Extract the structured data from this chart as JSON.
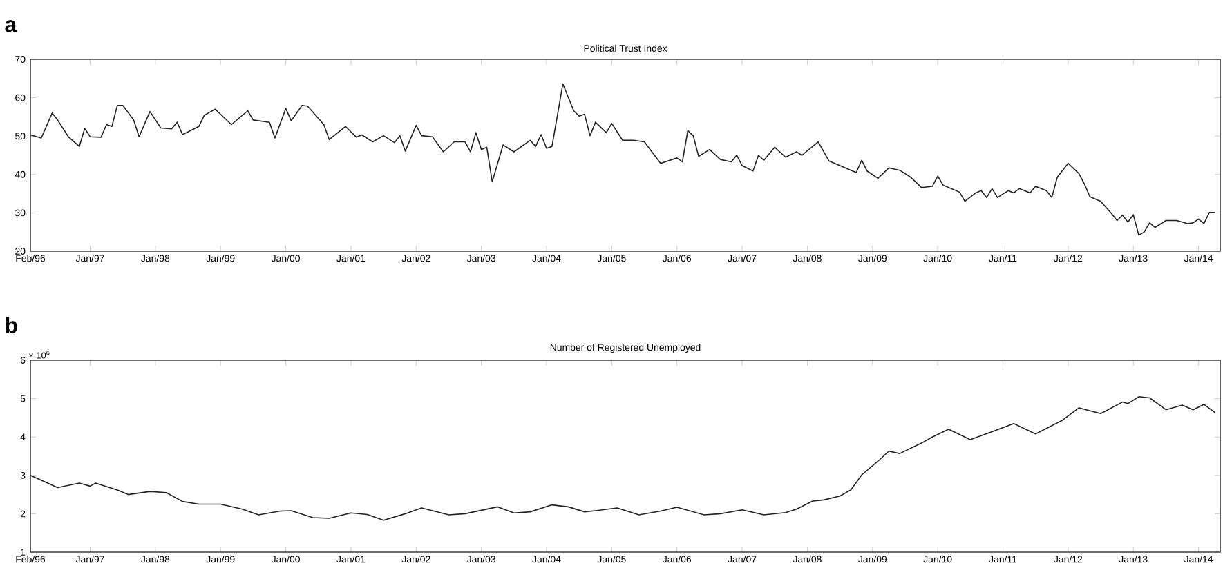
{
  "chart_data": [
    {
      "type": "line",
      "title": "Political Trust Index",
      "annotations": [
        "a"
      ],
      "xlim": [
        "1996-02",
        "2014-05"
      ],
      "ylim": [
        20,
        70
      ],
      "yticks": [
        20,
        30,
        40,
        50,
        60,
        70
      ],
      "xticks": [
        {
          "value": "1996-02",
          "label": "Feb/96"
        },
        {
          "value": "1997-01",
          "label": "Jan/97"
        },
        {
          "value": "1998-01",
          "label": "Jan/98"
        },
        {
          "value": "1999-01",
          "label": "Jan/99"
        },
        {
          "value": "2000-01",
          "label": "Jan/00"
        },
        {
          "value": "2001-01",
          "label": "Jan/01"
        },
        {
          "value": "2002-01",
          "label": "Jan/02"
        },
        {
          "value": "2003-01",
          "label": "Jan/03"
        },
        {
          "value": "2004-01",
          "label": "Jan/04"
        },
        {
          "value": "2005-01",
          "label": "Jan/05"
        },
        {
          "value": "2006-01",
          "label": "Jan/06"
        },
        {
          "value": "2007-01",
          "label": "Jan/07"
        },
        {
          "value": "2008-01",
          "label": "Jan/08"
        },
        {
          "value": "2009-01",
          "label": "Jan/09"
        },
        {
          "value": "2010-01",
          "label": "Jan/10"
        },
        {
          "value": "2011-01",
          "label": "Jan/11"
        },
        {
          "value": "2012-01",
          "label": "Jan/12"
        },
        {
          "value": "2013-01",
          "label": "Jan/13"
        },
        {
          "value": "2014-01",
          "label": "Jan/14"
        }
      ],
      "series": [
        {
          "color": "#222222",
          "x": [
            "1996-02",
            "1996-04",
            "1996-06",
            "1996-07",
            "1996-09",
            "1996-11",
            "1996-12",
            "1997-01",
            "1997-03",
            "1997-04",
            "1997-05",
            "1997-06",
            "1997-07",
            "1997-09",
            "1997-10",
            "1997-12",
            "1998-02",
            "1998-04",
            "1998-05",
            "1998-06",
            "1998-09",
            "1998-10",
            "1998-12",
            "1999-03",
            "1999-06",
            "1999-07",
            "1999-10",
            "1999-11",
            "2000-01",
            "2000-02",
            "2000-04",
            "2000-05",
            "2000-08",
            "2000-09",
            "2000-12",
            "2001-02",
            "2001-03",
            "2001-05",
            "2001-07",
            "2001-09",
            "2001-10",
            "2001-11",
            "2002-01",
            "2002-02",
            "2002-04",
            "2002-06",
            "2002-08",
            "2002-10",
            "2002-11",
            "2002-12",
            "2003-01",
            "2003-02",
            "2003-03",
            "2003-05",
            "2003-07",
            "2003-10",
            "2003-11",
            "2003-12",
            "2004-01",
            "2004-02",
            "2004-03",
            "2004-04",
            "2004-06",
            "2004-07",
            "2004-08",
            "2004-09",
            "2004-10",
            "2004-12",
            "2005-01",
            "2005-03",
            "2005-05",
            "2005-07",
            "2005-10",
            "2006-01",
            "2006-02",
            "2006-03",
            "2006-04",
            "2006-05",
            "2006-07",
            "2006-09",
            "2006-11",
            "2006-12",
            "2007-01",
            "2007-03",
            "2007-04",
            "2007-05",
            "2007-07",
            "2007-09",
            "2007-11",
            "2007-12",
            "2008-03",
            "2008-05",
            "2008-07",
            "2008-10",
            "2008-11",
            "2008-12",
            "2009-02",
            "2009-04",
            "2009-06",
            "2009-08",
            "2009-10",
            "2009-12",
            "2010-01",
            "2010-02",
            "2010-05",
            "2010-06",
            "2010-08",
            "2010-09",
            "2010-10",
            "2010-11",
            "2010-12",
            "2011-02",
            "2011-03",
            "2011-04",
            "2011-06",
            "2011-07",
            "2011-09",
            "2011-10",
            "2011-11",
            "2012-01",
            "2012-03",
            "2012-04",
            "2012-05",
            "2012-07",
            "2012-09",
            "2012-10",
            "2012-11",
            "2012-12",
            "2013-01",
            "2013-02",
            "2013-03",
            "2013-04",
            "2013-05",
            "2013-07",
            "2013-09",
            "2013-11",
            "2013-12",
            "2014-01",
            "2014-02",
            "2014-03",
            "2014-04"
          ],
          "values": [
            50.3,
            49.5,
            56.0,
            54.2,
            49.8,
            47.3,
            52.0,
            49.8,
            49.7,
            53.0,
            52.5,
            58.0,
            58.0,
            54.2,
            49.8,
            56.4,
            52.1,
            51.9,
            53.6,
            50.4,
            52.5,
            55.4,
            57.0,
            53.0,
            56.6,
            54.2,
            53.6,
            49.5,
            57.2,
            54.0,
            58.0,
            57.8,
            53.0,
            49.1,
            52.5,
            49.7,
            50.3,
            48.5,
            50.1,
            48.3,
            50.1,
            46.1,
            52.8,
            50.1,
            49.8,
            45.9,
            48.5,
            48.5,
            45.9,
            50.9,
            46.5,
            47.1,
            38.1,
            47.7,
            45.9,
            48.9,
            47.3,
            50.4,
            46.8,
            47.3,
            55.4,
            63.6,
            56.6,
            55.2,
            55.7,
            50.1,
            53.6,
            50.9,
            53.3,
            48.9,
            48.9,
            48.5,
            42.9,
            44.3,
            43.3,
            51.4,
            50.1,
            44.7,
            46.5,
            43.9,
            43.3,
            45.0,
            42.3,
            40.9,
            45.0,
            43.7,
            47.1,
            44.5,
            45.9,
            45.0,
            48.5,
            43.5,
            42.3,
            40.5,
            43.7,
            40.9,
            39.0,
            41.7,
            41.1,
            39.3,
            36.6,
            36.9,
            39.6,
            37.2,
            35.4,
            33.0,
            35.2,
            35.8,
            34.0,
            36.3,
            34.0,
            35.8,
            35.2,
            36.3,
            35.2,
            36.9,
            35.8,
            34.0,
            39.3,
            42.9,
            40.2,
            37.5,
            34.2,
            33.0,
            29.8,
            28.0,
            29.4,
            27.6,
            29.5,
            24.2,
            25.0,
            27.4,
            26.2,
            28.0,
            28.0,
            27.2,
            27.4,
            28.4,
            27.2,
            30.1,
            30.1
          ]
        }
      ]
    },
    {
      "type": "line",
      "title": "Number of Registered Unemployed",
      "annotations": [
        "b",
        "× 10$^{6}$"
      ],
      "xlim": [
        "1996-02",
        "2014-05"
      ],
      "ylim": [
        1,
        6
      ],
      "yticks": [
        1,
        2,
        3,
        4,
        5,
        6
      ],
      "xticks": [
        {
          "value": "1996-02",
          "label": "Feb/96"
        },
        {
          "value": "1997-01",
          "label": "Jan/97"
        },
        {
          "value": "1998-01",
          "label": "Jan/98"
        },
        {
          "value": "1999-01",
          "label": "Jan/99"
        },
        {
          "value": "2000-01",
          "label": "Jan/00"
        },
        {
          "value": "2001-01",
          "label": "Jan/01"
        },
        {
          "value": "2002-01",
          "label": "Jan/02"
        },
        {
          "value": "2003-01",
          "label": "Jan/03"
        },
        {
          "value": "2004-01",
          "label": "Jan/04"
        },
        {
          "value": "2005-01",
          "label": "Jan/05"
        },
        {
          "value": "2006-01",
          "label": "Jan/06"
        },
        {
          "value": "2007-01",
          "label": "Jan/07"
        },
        {
          "value": "2008-01",
          "label": "Jan/08"
        },
        {
          "value": "2009-01",
          "label": "Jan/09"
        },
        {
          "value": "2010-01",
          "label": "Jan/10"
        },
        {
          "value": "2011-01",
          "label": "Jan/11"
        },
        {
          "value": "2012-01",
          "label": "Jan/12"
        },
        {
          "value": "2013-01",
          "label": "Jan/13"
        },
        {
          "value": "2014-01",
          "label": "Jan/14"
        }
      ],
      "series": [
        {
          "color": "#222222",
          "x": [
            "1996-02",
            "1996-07",
            "1996-11",
            "1997-01",
            "1997-02",
            "1997-06",
            "1997-08",
            "1997-12",
            "1998-03",
            "1998-06",
            "1998-09",
            "1999-01",
            "1999-05",
            "1999-08",
            "1999-12",
            "2000-02",
            "2000-06",
            "2000-09",
            "2001-01",
            "2001-04",
            "2001-07",
            "2001-11",
            "2002-02",
            "2002-07",
            "2002-10",
            "2003-04",
            "2003-07",
            "2003-10",
            "2004-02",
            "2004-05",
            "2004-08",
            "2004-10",
            "2005-02",
            "2005-06",
            "2005-10",
            "2006-01",
            "2006-06",
            "2006-09",
            "2007-01",
            "2007-05",
            "2007-09",
            "2007-11",
            "2008-02",
            "2008-04",
            "2008-07",
            "2008-09",
            "2008-11",
            "2009-02",
            "2009-04",
            "2009-06",
            "2009-10",
            "2009-12",
            "2010-03",
            "2010-07",
            "2010-11",
            "2011-03",
            "2011-07",
            "2011-12",
            "2012-03",
            "2012-07",
            "2012-11",
            "2012-12",
            "2013-02",
            "2013-04",
            "2013-07",
            "2013-10",
            "2013-12",
            "2014-02",
            "2014-04"
          ],
          "values": [
            3.0,
            2.68,
            2.8,
            2.72,
            2.8,
            2.62,
            2.5,
            2.58,
            2.55,
            2.32,
            2.25,
            2.25,
            2.12,
            1.97,
            2.07,
            2.08,
            1.9,
            1.88,
            2.02,
            1.98,
            1.83,
            2.0,
            2.15,
            1.97,
            2.0,
            2.18,
            2.02,
            2.05,
            2.23,
            2.18,
            2.05,
            2.08,
            2.15,
            1.97,
            2.07,
            2.17,
            1.97,
            2.0,
            2.1,
            1.97,
            2.03,
            2.12,
            2.33,
            2.36,
            2.46,
            2.62,
            3.01,
            3.37,
            3.63,
            3.57,
            3.84,
            4.0,
            4.2,
            3.93,
            4.14,
            4.35,
            4.08,
            4.44,
            4.76,
            4.61,
            4.91,
            4.87,
            5.05,
            5.02,
            4.71,
            4.83,
            4.71,
            4.85,
            4.64
          ]
        }
      ]
    }
  ]
}
